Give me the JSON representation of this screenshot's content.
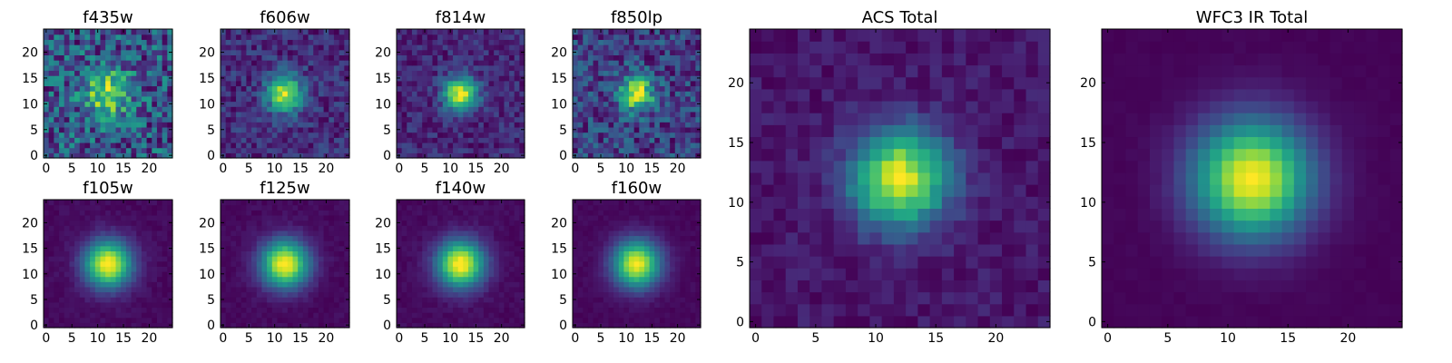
{
  "chart_data": [
    {
      "type": "heatmap",
      "title": "f435w",
      "grid": 25,
      "xticks": [
        0,
        5,
        10,
        15,
        20
      ],
      "yticks": [
        0,
        5,
        10,
        15,
        20
      ],
      "xlim": [
        -0.5,
        24.5
      ],
      "ylim": [
        -0.5,
        24.5
      ],
      "peak": [
        12,
        12
      ],
      "source_width": 3.0,
      "source_amplitude": 0.45,
      "noise": 0.38,
      "background": 0.32,
      "colormap": "viridis"
    },
    {
      "type": "heatmap",
      "title": "f606w",
      "grid": 25,
      "xticks": [
        0,
        5,
        10,
        15,
        20
      ],
      "yticks": [
        0,
        5,
        10,
        15,
        20
      ],
      "xlim": [
        -0.5,
        24.5
      ],
      "ylim": [
        -0.5,
        24.5
      ],
      "peak": [
        12,
        12
      ],
      "source_width": 2.5,
      "source_amplitude": 0.65,
      "noise": 0.22,
      "background": 0.25,
      "colormap": "viridis"
    },
    {
      "type": "heatmap",
      "title": "f814w",
      "grid": 25,
      "xticks": [
        0,
        5,
        10,
        15,
        20
      ],
      "yticks": [
        0,
        5,
        10,
        15,
        20
      ],
      "xlim": [
        -0.5,
        24.5
      ],
      "ylim": [
        -0.5,
        24.5
      ],
      "peak": [
        12,
        12
      ],
      "source_width": 2.3,
      "source_amplitude": 0.75,
      "noise": 0.2,
      "background": 0.2,
      "colormap": "viridis"
    },
    {
      "type": "heatmap",
      "title": "f850lp",
      "grid": 25,
      "xticks": [
        0,
        5,
        10,
        15,
        20
      ],
      "yticks": [
        0,
        5,
        10,
        15,
        20
      ],
      "xlim": [
        -0.5,
        24.5
      ],
      "ylim": [
        -0.5,
        24.5
      ],
      "peak": [
        12,
        12
      ],
      "source_width": 2.3,
      "source_amplitude": 0.6,
      "noise": 0.3,
      "background": 0.3,
      "colormap": "viridis"
    },
    {
      "type": "heatmap",
      "title": "f105w",
      "grid": 25,
      "xticks": [
        0,
        5,
        10,
        15,
        20
      ],
      "yticks": [
        0,
        5,
        10,
        15,
        20
      ],
      "xlim": [
        -0.5,
        24.5
      ],
      "ylim": [
        -0.5,
        24.5
      ],
      "peak": [
        12,
        12
      ],
      "source_width": 3.2,
      "source_amplitude": 0.9,
      "noise": 0.05,
      "background": 0.08,
      "colormap": "viridis"
    },
    {
      "type": "heatmap",
      "title": "f125w",
      "grid": 25,
      "xticks": [
        0,
        5,
        10,
        15,
        20
      ],
      "yticks": [
        0,
        5,
        10,
        15,
        20
      ],
      "xlim": [
        -0.5,
        24.5
      ],
      "ylim": [
        -0.5,
        24.5
      ],
      "peak": [
        12,
        12
      ],
      "source_width": 3.2,
      "source_amplitude": 0.9,
      "noise": 0.05,
      "background": 0.08,
      "colormap": "viridis"
    },
    {
      "type": "heatmap",
      "title": "f140w",
      "grid": 25,
      "xticks": [
        0,
        5,
        10,
        15,
        20
      ],
      "yticks": [
        0,
        5,
        10,
        15,
        20
      ],
      "xlim": [
        -0.5,
        24.5
      ],
      "ylim": [
        -0.5,
        24.5
      ],
      "peak": [
        12,
        12
      ],
      "source_width": 3.2,
      "source_amplitude": 0.9,
      "noise": 0.05,
      "background": 0.08,
      "colormap": "viridis"
    },
    {
      "type": "heatmap",
      "title": "f160w",
      "grid": 25,
      "xticks": [
        0,
        5,
        10,
        15,
        20
      ],
      "yticks": [
        0,
        5,
        10,
        15,
        20
      ],
      "xlim": [
        -0.5,
        24.5
      ],
      "ylim": [
        -0.5,
        24.5
      ],
      "peak": [
        12,
        12
      ],
      "source_width": 3.2,
      "source_amplitude": 0.9,
      "noise": 0.04,
      "background": 0.06,
      "colormap": "viridis"
    },
    {
      "type": "heatmap",
      "title": "ACS Total",
      "grid": 25,
      "xticks": [
        0,
        5,
        10,
        15,
        20
      ],
      "yticks": [
        0,
        5,
        10,
        15,
        20
      ],
      "xlim": [
        -0.5,
        24.5
      ],
      "ylim": [
        -0.5,
        24.5
      ],
      "peak": [
        12,
        12
      ],
      "source_width": 2.8,
      "source_amplitude": 0.72,
      "noise": 0.1,
      "background": 0.25,
      "colormap": "viridis"
    },
    {
      "type": "heatmap",
      "title": "WFC3 IR Total",
      "grid": 25,
      "xticks": [
        0,
        5,
        10,
        15,
        20
      ],
      "yticks": [
        0,
        5,
        10,
        15,
        20
      ],
      "xlim": [
        -0.5,
        24.5
      ],
      "ylim": [
        -0.5,
        24.5
      ],
      "peak": [
        12,
        12
      ],
      "source_width": 3.4,
      "source_amplitude": 0.92,
      "noise": 0.02,
      "background": 0.04,
      "colormap": "viridis"
    }
  ]
}
